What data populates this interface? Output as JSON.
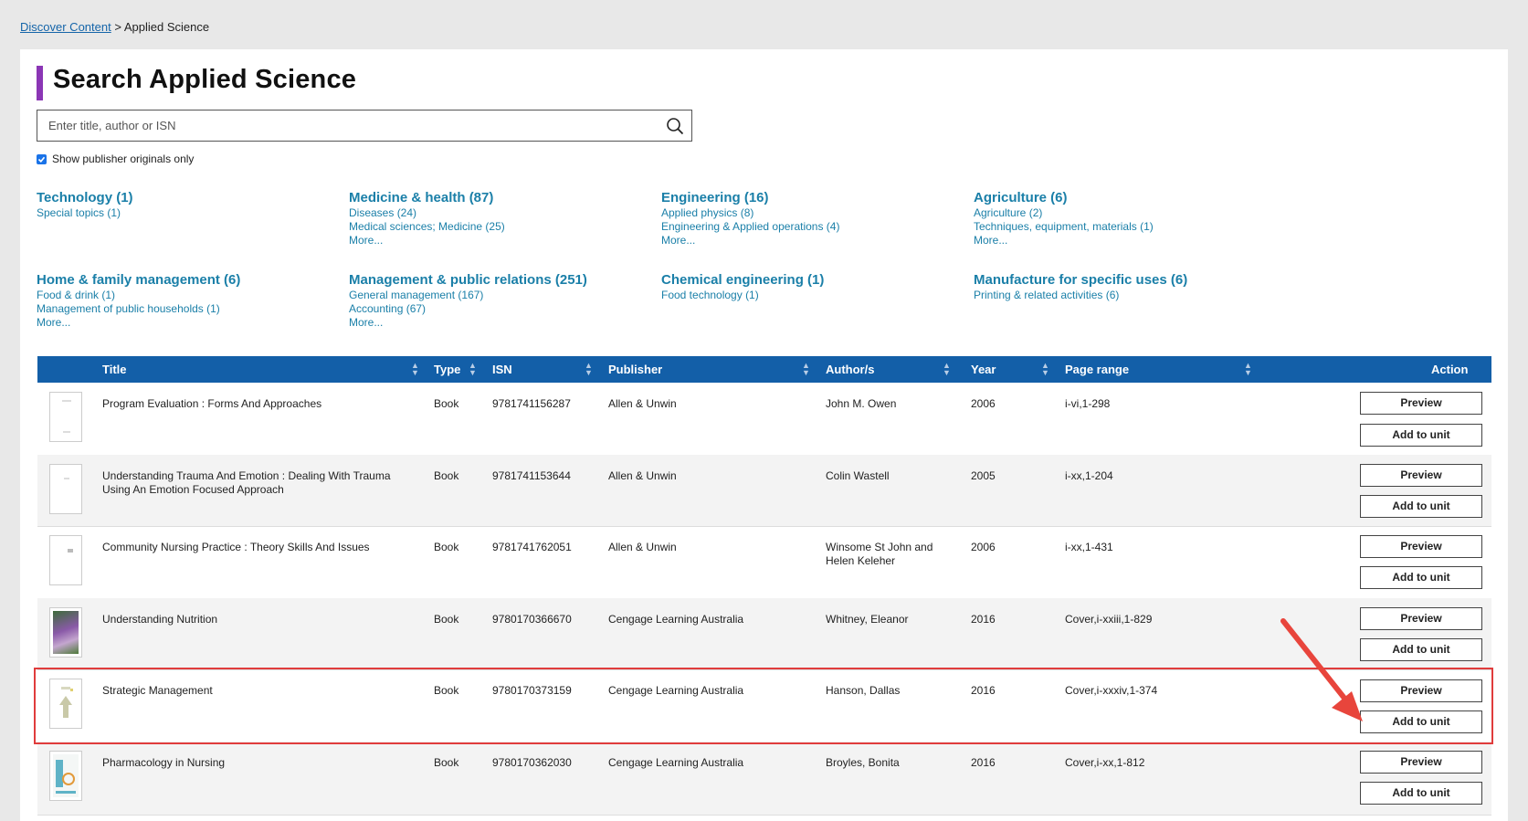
{
  "breadcrumb": {
    "link": "Discover Content",
    "separator": ">",
    "current": "Applied Science"
  },
  "page_title": "Search Applied Science",
  "search": {
    "placeholder": "Enter title, author or ISN",
    "value": ""
  },
  "publisher_filter": {
    "label": "Show publisher originals only",
    "checked": true
  },
  "categories": [
    {
      "title": "Technology (1)",
      "subs": [
        "Special topics (1)"
      ]
    },
    {
      "title": "Medicine & health (87)",
      "subs": [
        "Diseases (24)",
        "Medical sciences; Medicine (25)",
        "More..."
      ]
    },
    {
      "title": "Engineering (16)",
      "subs": [
        "Applied physics (8)",
        "Engineering & Applied operations (4)",
        "More..."
      ]
    },
    {
      "title": "Agriculture (6)",
      "subs": [
        "Agriculture (2)",
        "Techniques, equipment, materials (1)",
        "More..."
      ]
    },
    {
      "title": "Home & family management (6)",
      "subs": [
        "Food & drink (1)",
        "Management of public households (1)",
        "More..."
      ]
    },
    {
      "title": "Management & public relations (251)",
      "subs": [
        "General management (167)",
        "Accounting (67)",
        "More..."
      ]
    },
    {
      "title": "Chemical engineering (1)",
      "subs": [
        "Food technology (1)"
      ]
    },
    {
      "title": "Manufacture for specific uses (6)",
      "subs": [
        "Printing & related activities (6)"
      ]
    }
  ],
  "table": {
    "headers": {
      "title": "Title",
      "type": "Type",
      "isn": "ISN",
      "publisher": "Publisher",
      "authors": "Author/s",
      "year": "Year",
      "page_range": "Page range",
      "action": "Action"
    },
    "buttons": {
      "preview": "Preview",
      "add": "Add to unit"
    },
    "rows": [
      {
        "title": "Program Evaluation : Forms And Approaches",
        "type": "Book",
        "isn": "9781741156287",
        "publisher": "Allen & Unwin",
        "authors": "John M. Owen",
        "year": "2006",
        "page_range": "i-vi,1-298"
      },
      {
        "title": "Understanding Trauma And Emotion : Dealing With Trauma Using An Emotion Focused Approach",
        "type": "Book",
        "isn": "9781741153644",
        "publisher": "Allen & Unwin",
        "authors": "Colin Wastell",
        "year": "2005",
        "page_range": "i-xx,1-204"
      },
      {
        "title": "Community Nursing Practice : Theory Skills And Issues",
        "type": "Book",
        "isn": "9781741762051",
        "publisher": "Allen & Unwin",
        "authors": "Winsome St John and Helen Keleher",
        "year": "2006",
        "page_range": "i-xx,1-431"
      },
      {
        "title": "Understanding Nutrition",
        "type": "Book",
        "isn": "9780170366670",
        "publisher": "Cengage Learning Australia",
        "authors": "Whitney, Eleanor",
        "year": "2016",
        "page_range": "Cover,i-xxiii,1-829"
      },
      {
        "title": "Strategic Management",
        "type": "Book",
        "isn": "9780170373159",
        "publisher": "Cengage Learning Australia",
        "authors": "Hanson, Dallas",
        "year": "2016",
        "page_range": "Cover,i-xxxiv,1-374"
      },
      {
        "title": "Pharmacology in Nursing",
        "type": "Book",
        "isn": "9780170362030",
        "publisher": "Cengage Learning Australia",
        "authors": "Broyles, Bonita",
        "year": "2016",
        "page_range": "Cover,i-xx,1-812"
      }
    ]
  },
  "colors": {
    "accent": "#8b36b5",
    "header": "#135fa8",
    "link": "#1a7fa8",
    "annotation": "#e03c3c"
  }
}
